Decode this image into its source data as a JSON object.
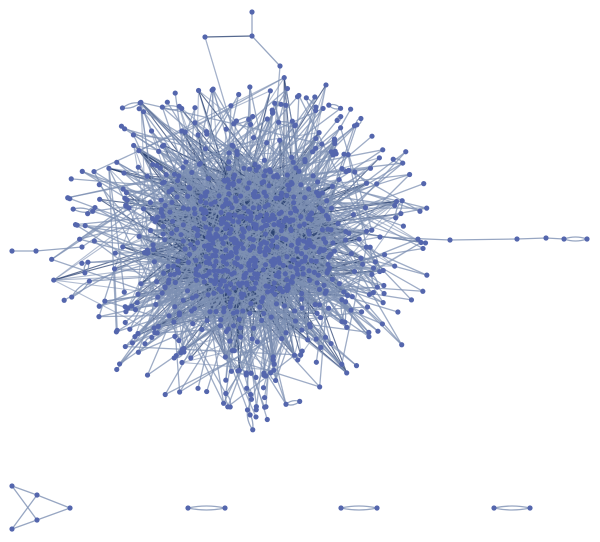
{
  "graph": {
    "directed": true,
    "colors": {
      "node": "#5466ad",
      "edge": "#7d90b3",
      "core_edge": "#2c4373",
      "background": "#ffffff"
    }
  }
}
